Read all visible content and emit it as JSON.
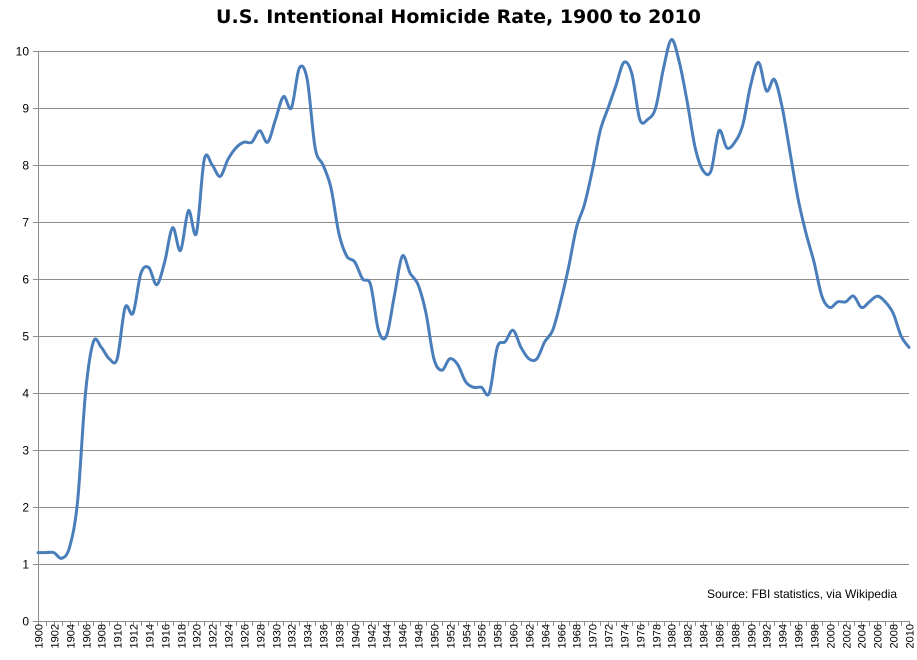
{
  "chart_data": {
    "type": "line",
    "title": "U.S. Intentional Homicide Rate, 1900 to 2010",
    "xlabel": "",
    "ylabel": "",
    "ylim": [
      0,
      10
    ],
    "yticks": [
      0,
      1,
      2,
      3,
      4,
      5,
      6,
      7,
      8,
      9,
      10
    ],
    "xlim": [
      1900,
      2010
    ],
    "xtick_step": 2,
    "grid": "horizontal",
    "line_color": "#4a7ebb",
    "annotation": "Source: FBI statistics, via Wikipedia",
    "series": [
      {
        "x": [
          1900,
          1901,
          1902,
          1903,
          1904,
          1905,
          1906,
          1907,
          1908,
          1909,
          1910,
          1911,
          1912,
          1913,
          1914,
          1915,
          1916,
          1917,
          1918,
          1919,
          1920,
          1921,
          1922,
          1923,
          1924,
          1925,
          1926,
          1927,
          1928,
          1929,
          1930,
          1931,
          1932,
          1933,
          1934,
          1935,
          1936,
          1937,
          1938,
          1939,
          1940,
          1941,
          1942,
          1943,
          1944,
          1945,
          1946,
          1947,
          1948,
          1949,
          1950,
          1951,
          1952,
          1953,
          1954,
          1955,
          1956,
          1957,
          1958,
          1959,
          1960,
          1961,
          1962,
          1963,
          1964,
          1965,
          1966,
          1967,
          1968,
          1969,
          1970,
          1971,
          1972,
          1973,
          1974,
          1975,
          1976,
          1977,
          1978,
          1979,
          1980,
          1981,
          1982,
          1983,
          1984,
          1985,
          1986,
          1987,
          1988,
          1989,
          1990,
          1991,
          1992,
          1993,
          1994,
          1995,
          1996,
          1997,
          1998,
          1999,
          2000,
          2001,
          2002,
          2003,
          2004,
          2005,
          2006,
          2007,
          2008,
          2009,
          2010
        ],
        "values": [
          1.2,
          1.2,
          1.2,
          1.1,
          1.3,
          2.1,
          4.0,
          4.9,
          4.8,
          4.6,
          4.6,
          5.5,
          5.4,
          6.1,
          6.2,
          5.9,
          6.3,
          6.9,
          6.5,
          7.2,
          6.8,
          8.1,
          8.0,
          7.8,
          8.1,
          8.3,
          8.4,
          8.4,
          8.6,
          8.4,
          8.8,
          9.2,
          9.0,
          9.7,
          9.5,
          8.3,
          8.0,
          7.6,
          6.8,
          6.4,
          6.3,
          6.0,
          5.9,
          5.1,
          5.0,
          5.7,
          6.4,
          6.1,
          5.9,
          5.4,
          4.6,
          4.4,
          4.6,
          4.5,
          4.2,
          4.1,
          4.1,
          4.0,
          4.8,
          4.9,
          5.1,
          4.8,
          4.6,
          4.6,
          4.9,
          5.1,
          5.6,
          6.2,
          6.9,
          7.3,
          7.9,
          8.6,
          9.0,
          9.4,
          9.8,
          9.6,
          8.8,
          8.8,
          9.0,
          9.7,
          10.2,
          9.8,
          9.1,
          8.3,
          7.9,
          7.9,
          8.6,
          8.3,
          8.4,
          8.7,
          9.4,
          9.8,
          9.3,
          9.5,
          9.0,
          8.2,
          7.4,
          6.8,
          6.3,
          5.7,
          5.5,
          5.6,
          5.6,
          5.7,
          5.5,
          5.6,
          5.7,
          5.6,
          5.4,
          5.0,
          4.8
        ]
      }
    ]
  }
}
